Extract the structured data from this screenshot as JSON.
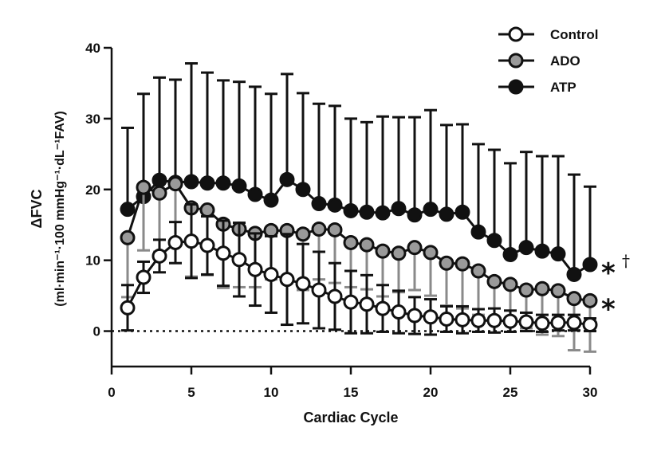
{
  "chart_data": {
    "type": "line",
    "xlabel": "Cardiac Cycle",
    "ylabel_line1": "ΔFVC",
    "ylabel_line2": "(ml·min⁻¹·100 mmHg⁻¹·dL⁻¹FAV)",
    "xlim": [
      0,
      30
    ],
    "ylim": [
      -5,
      40
    ],
    "x_ticks": [
      0,
      5,
      10,
      15,
      20,
      25,
      30
    ],
    "y_ticks": [
      0,
      10,
      20,
      30,
      40
    ],
    "x_tick_labels": [
      "0",
      "5",
      "10",
      "15",
      "20",
      "25",
      "30"
    ],
    "y_tick_labels": [
      "0",
      "10",
      "20",
      "30",
      "40"
    ],
    "reference_line_y": 0,
    "legend_position": "top-right",
    "x": [
      1,
      2,
      3,
      4,
      5,
      6,
      7,
      8,
      9,
      10,
      11,
      12,
      13,
      14,
      15,
      16,
      17,
      18,
      19,
      20,
      21,
      22,
      23,
      24,
      25,
      26,
      27,
      28,
      29,
      30
    ],
    "series": [
      {
        "name": "ATP",
        "marker_fill": "#111111",
        "error_color": "#111111",
        "error_direction": "up",
        "values": [
          17.2,
          19.0,
          21.3,
          21.0,
          21.1,
          20.9,
          20.9,
          20.5,
          19.3,
          18.5,
          21.4,
          20.0,
          18.0,
          17.8,
          17.0,
          16.8,
          16.7,
          17.3,
          16.4,
          17.2,
          16.5,
          16.8,
          14.0,
          12.8,
          10.8,
          11.8,
          11.3,
          10.9,
          8.0,
          9.4
        ],
        "error": [
          11.5,
          14.5,
          14.5,
          14.5,
          16.7,
          15.6,
          14.5,
          14.7,
          15.2,
          15.0,
          14.9,
          13.6,
          14.1,
          14.0,
          13.0,
          12.7,
          13.6,
          12.9,
          13.8,
          14.0,
          12.6,
          12.4,
          12.4,
          12.8,
          12.9,
          13.5,
          13.4,
          13.8,
          14.1,
          11.0
        ]
      },
      {
        "name": "ADO",
        "marker_fill": "#9a9a9a",
        "error_color": "#8a8a8a",
        "error_direction": "down",
        "values": [
          13.2,
          20.3,
          19.5,
          20.8,
          17.4,
          17.1,
          15.1,
          14.4,
          13.8,
          14.2,
          14.2,
          13.7,
          14.4,
          14.3,
          12.5,
          12.2,
          11.3,
          11.0,
          11.8,
          11.1,
          9.6,
          9.5,
          8.5,
          7.0,
          6.6,
          5.8,
          6.0,
          5.7,
          4.6,
          4.3
        ],
        "error": [
          8.4,
          8.9,
          8.3,
          8.2,
          9.7,
          9.2,
          9.0,
          8.2,
          7.6,
          6.9,
          7.4,
          7.9,
          7.1,
          7.5,
          6.3,
          6.3,
          6.4,
          5.5,
          6.0,
          6.1,
          6.0,
          6.3,
          6.2,
          5.4,
          5.0,
          5.4,
          6.5,
          6.4,
          7.3,
          7.2
        ]
      },
      {
        "name": "Control",
        "marker_fill": "#ffffff",
        "error_color": "#111111",
        "error_direction": "both",
        "values": [
          3.3,
          7.6,
          10.6,
          12.5,
          12.7,
          12.1,
          11.0,
          10.1,
          8.7,
          8.0,
          7.3,
          6.7,
          5.8,
          4.9,
          4.1,
          3.8,
          3.2,
          2.7,
          2.2,
          2.0,
          1.7,
          1.6,
          1.5,
          1.5,
          1.4,
          1.3,
          1.1,
          1.2,
          1.2,
          0.9
        ],
        "error": [
          3.2,
          2.2,
          2.3,
          2.9,
          5.2,
          4.1,
          4.6,
          5.2,
          5.1,
          5.4,
          6.4,
          5.6,
          5.4,
          4.7,
          4.4,
          4.1,
          3.3,
          3.0,
          2.6,
          2.5,
          1.8,
          1.9,
          1.6,
          1.7,
          1.5,
          1.3,
          1.2,
          1.1,
          1.1,
          0.9
        ]
      }
    ],
    "legend_order": [
      "Control",
      "ADO",
      "ATP"
    ],
    "annotations": [
      {
        "series": "ATP",
        "text": "*",
        "superscript": "†"
      },
      {
        "series": "ADO",
        "text": "*",
        "superscript": ""
      }
    ]
  }
}
